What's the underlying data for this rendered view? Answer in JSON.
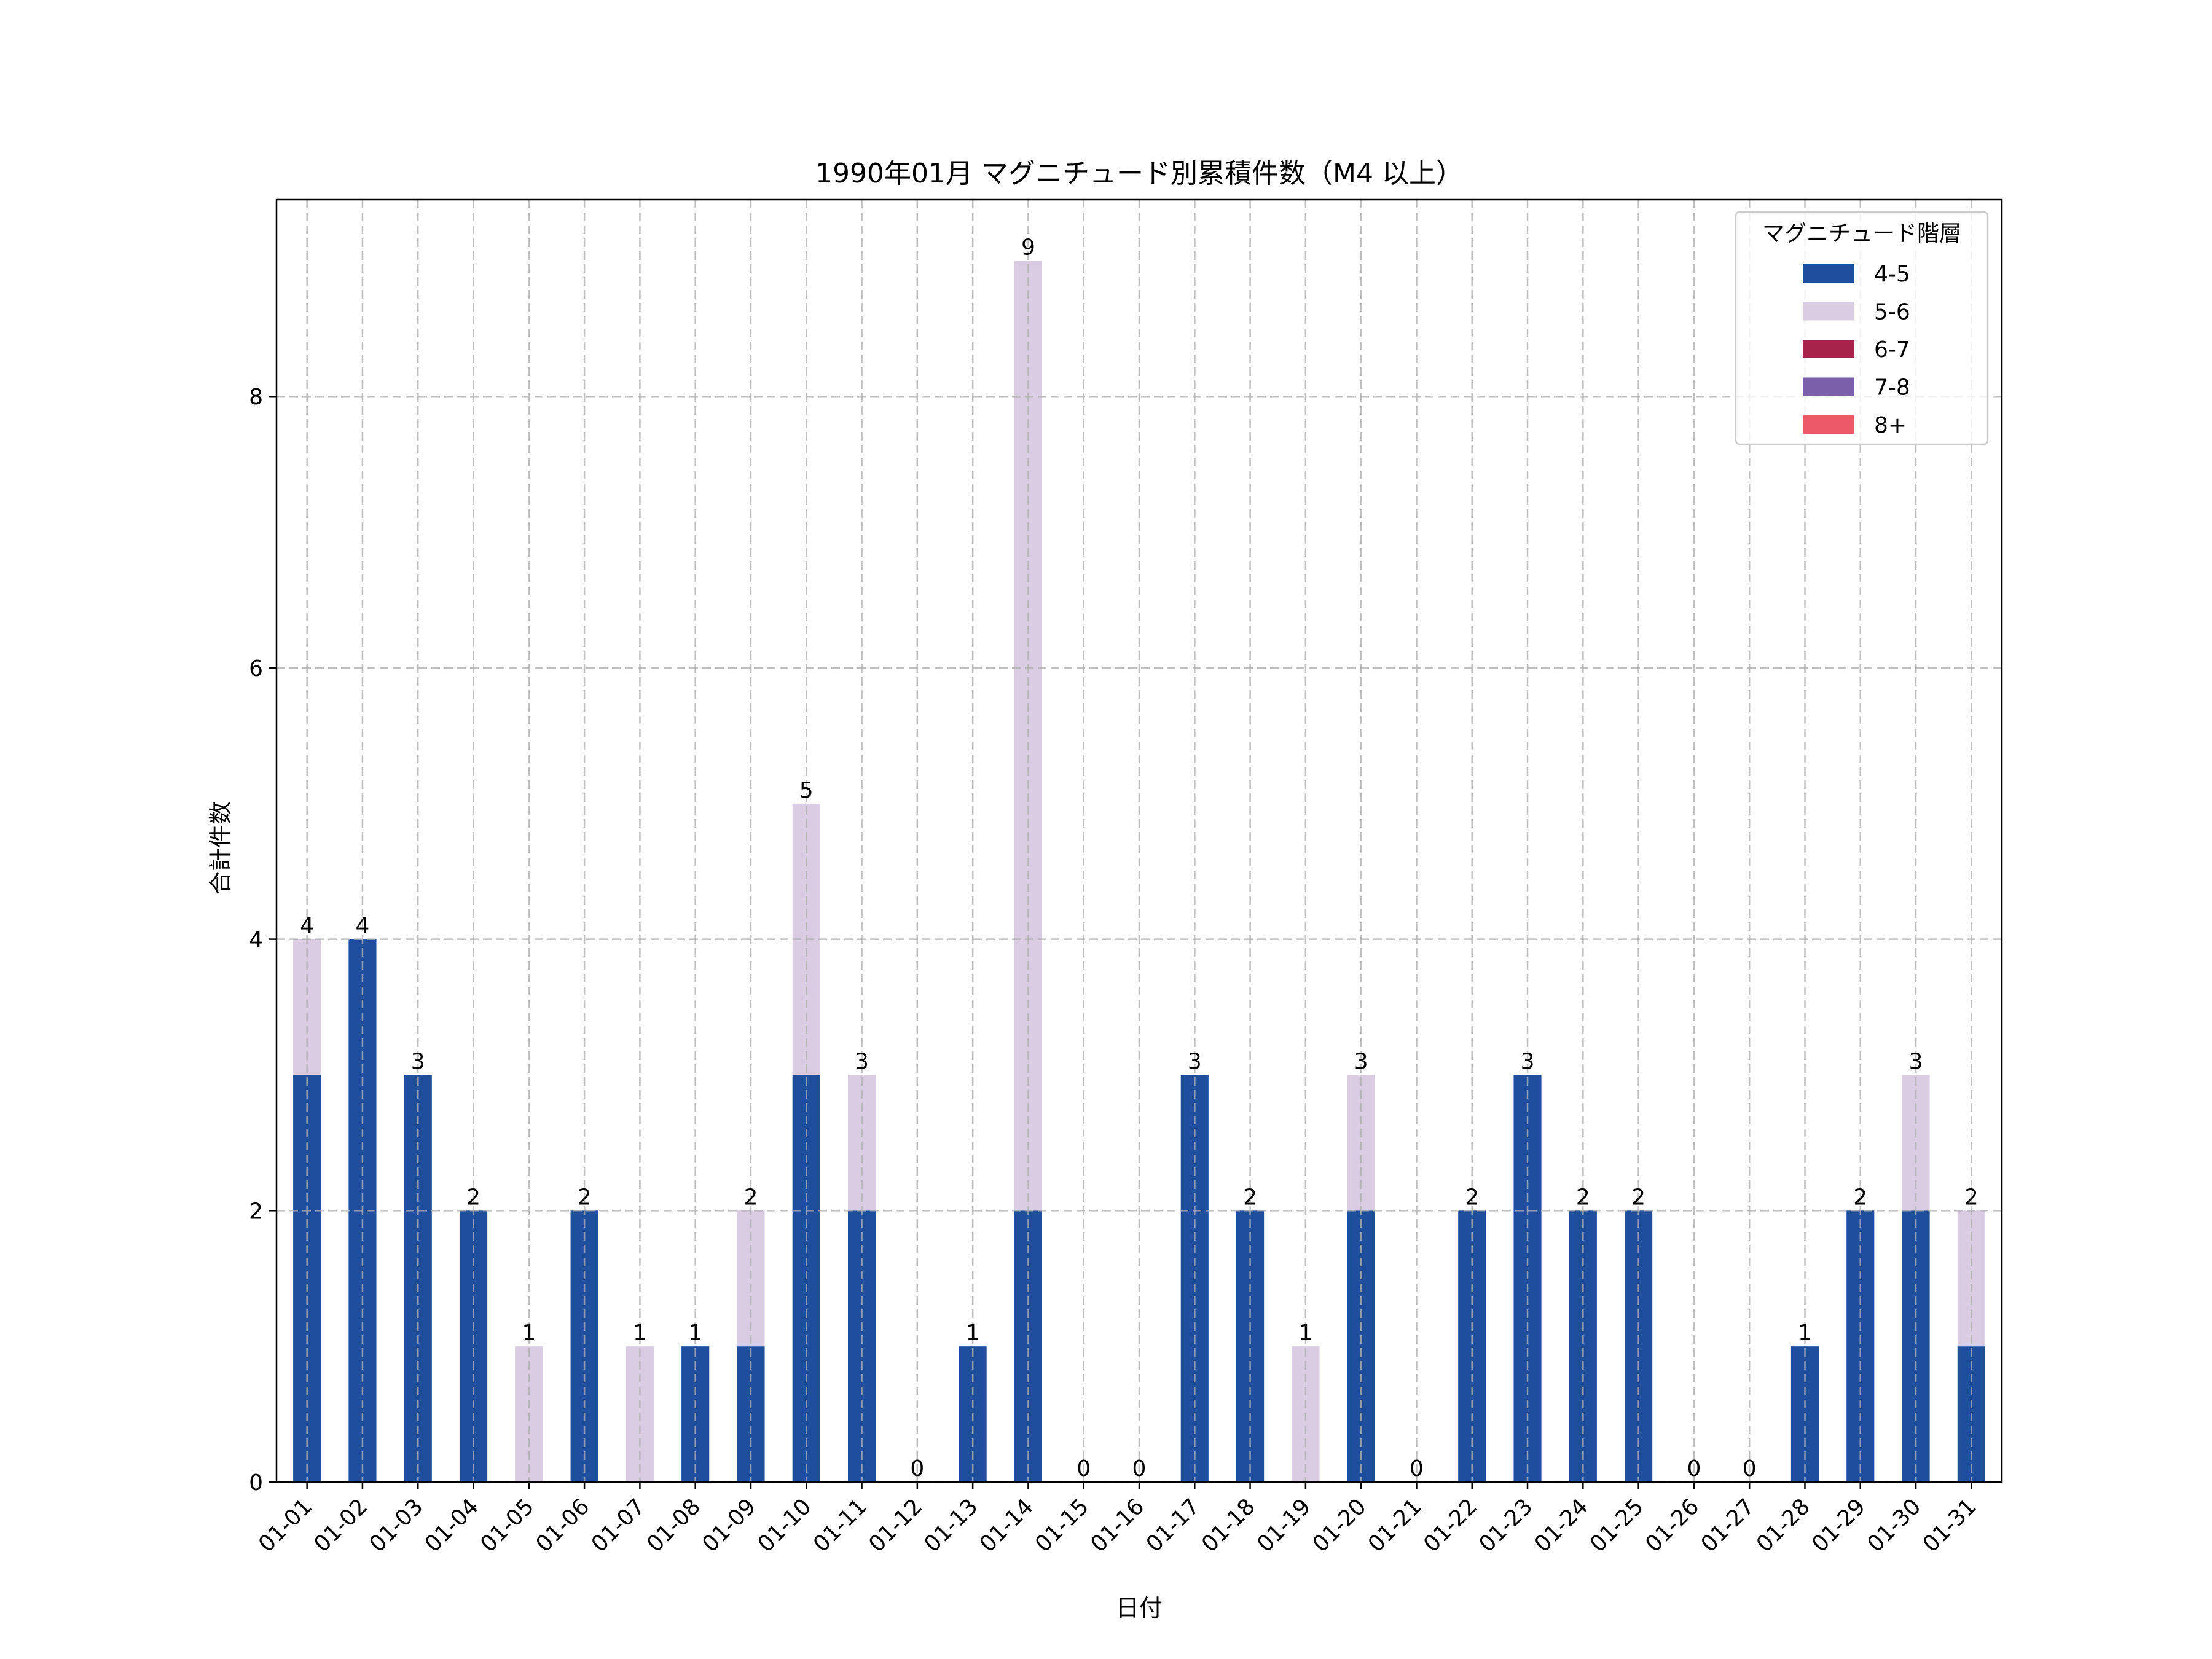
{
  "chart_data": {
    "type": "bar",
    "stacked": true,
    "title": "1990年01月 マグニチュード別累積件数（M4 以上）",
    "xlabel": "日付",
    "ylabel": "合計件数",
    "ylim": [
      0,
      9.45
    ],
    "yticks": [
      0,
      2,
      4,
      6,
      8
    ],
    "grid": true,
    "legend": {
      "title": "マグニチュード階層",
      "placement": "top-right"
    },
    "categories": [
      "01-01",
      "01-02",
      "01-03",
      "01-04",
      "01-05",
      "01-06",
      "01-07",
      "01-08",
      "01-09",
      "01-10",
      "01-11",
      "01-12",
      "01-13",
      "01-14",
      "01-15",
      "01-16",
      "01-17",
      "01-18",
      "01-19",
      "01-20",
      "01-21",
      "01-22",
      "01-23",
      "01-24",
      "01-25",
      "01-26",
      "01-27",
      "01-28",
      "01-29",
      "01-30",
      "01-31"
    ],
    "series": [
      {
        "name": "4-5",
        "color": "#1f4e9c",
        "values": [
          3,
          4,
          3,
          2,
          0,
          2,
          0,
          1,
          1,
          3,
          2,
          0,
          1,
          2,
          0,
          0,
          3,
          2,
          0,
          2,
          0,
          2,
          3,
          2,
          2,
          0,
          0,
          1,
          2,
          2,
          1
        ]
      },
      {
        "name": "5-6",
        "color": "#d9cce3",
        "values": [
          1,
          0,
          0,
          0,
          1,
          0,
          1,
          0,
          1,
          2,
          1,
          0,
          0,
          7,
          0,
          0,
          0,
          0,
          1,
          1,
          0,
          0,
          0,
          0,
          0,
          0,
          0,
          0,
          0,
          1,
          1
        ]
      },
      {
        "name": "6-7",
        "color": "#a6224a",
        "values": [
          0,
          0,
          0,
          0,
          0,
          0,
          0,
          0,
          0,
          0,
          0,
          0,
          0,
          0,
          0,
          0,
          0,
          0,
          0,
          0,
          0,
          0,
          0,
          0,
          0,
          0,
          0,
          0,
          0,
          0,
          0
        ]
      },
      {
        "name": "7-8",
        "color": "#7b5fa8",
        "values": [
          0,
          0,
          0,
          0,
          0,
          0,
          0,
          0,
          0,
          0,
          0,
          0,
          0,
          0,
          0,
          0,
          0,
          0,
          0,
          0,
          0,
          0,
          0,
          0,
          0,
          0,
          0,
          0,
          0,
          0,
          0
        ]
      },
      {
        "name": "8+",
        "color": "#ec5a6a",
        "values": [
          0,
          0,
          0,
          0,
          0,
          0,
          0,
          0,
          0,
          0,
          0,
          0,
          0,
          0,
          0,
          0,
          0,
          0,
          0,
          0,
          0,
          0,
          0,
          0,
          0,
          0,
          0,
          0,
          0,
          0,
          0
        ]
      }
    ],
    "totals": [
      4,
      4,
      3,
      2,
      1,
      2,
      1,
      1,
      2,
      5,
      3,
      0,
      1,
      9,
      0,
      0,
      3,
      2,
      1,
      3,
      0,
      2,
      3,
      2,
      2,
      0,
      0,
      1,
      2,
      3,
      2
    ]
  }
}
